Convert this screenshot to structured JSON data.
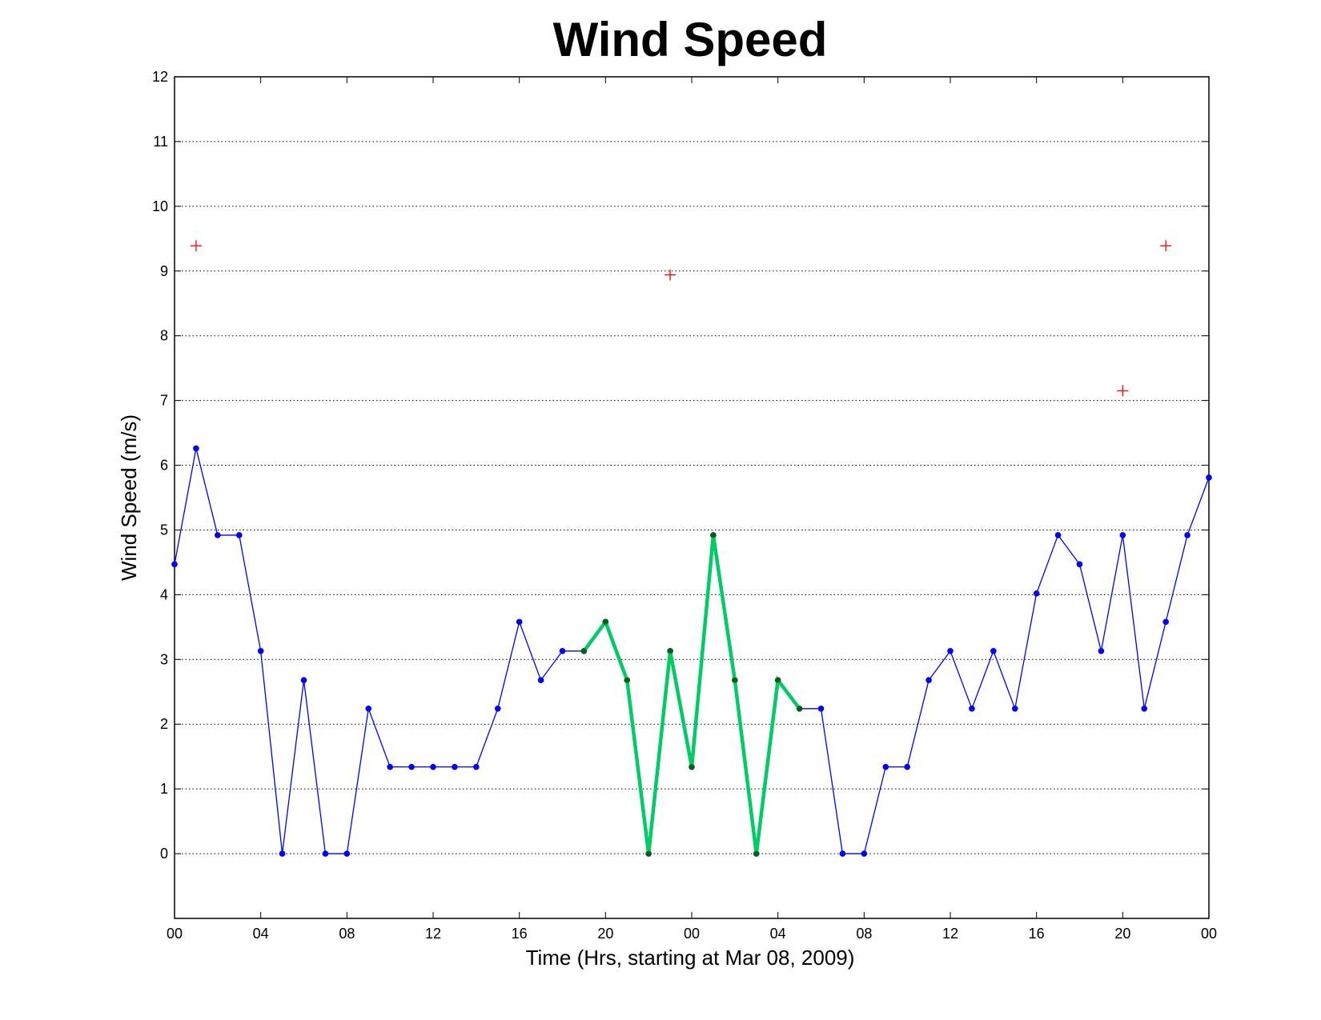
{
  "chart_data": {
    "type": "line",
    "title": "Wind Speed",
    "xlabel": "Time (Hrs, starting at Mar 08, 2009)",
    "ylabel": "Wind Speed (m/s)",
    "xlim": [
      0,
      48
    ],
    "ylim": [
      -1,
      12
    ],
    "yticks": [
      0,
      1,
      2,
      3,
      4,
      5,
      6,
      7,
      8,
      9,
      10,
      11,
      12
    ],
    "xticks": [
      0,
      4,
      8,
      12,
      16,
      20,
      24,
      28,
      32,
      36,
      40,
      44,
      48
    ],
    "xtick_labels": [
      "00",
      "04",
      "08",
      "12",
      "16",
      "20",
      "00",
      "04",
      "08",
      "12",
      "16",
      "20",
      "00"
    ],
    "grid": "horizontal dotted",
    "x": [
      0,
      1,
      2,
      3,
      4,
      5,
      6,
      7,
      8,
      9,
      10,
      11,
      12,
      13,
      14,
      15,
      16,
      17,
      18,
      19,
      20,
      21,
      22,
      23,
      24,
      25,
      26,
      27,
      28,
      29,
      30,
      31,
      32,
      33,
      34,
      35,
      36,
      37,
      38,
      39,
      40,
      41,
      42,
      43,
      44,
      45,
      46,
      47,
      48
    ],
    "series": [
      {
        "style": "line-dot",
        "color": "#0000ff",
        "values": [
          4.47,
          6.26,
          4.92,
          4.92,
          3.13,
          0,
          2.68,
          0,
          0,
          2.24,
          1.34,
          1.34,
          1.34,
          1.34,
          1.34,
          2.24,
          3.58,
          2.68,
          3.13,
          3.13,
          3.58,
          2.68,
          0,
          3.13,
          1.34,
          4.92,
          2.68,
          0,
          2.68,
          2.24,
          2.24,
          0,
          0,
          1.34,
          1.34,
          2.68,
          3.13,
          2.24,
          3.13,
          2.24,
          4.02,
          4.92,
          4.47,
          3.13,
          4.92,
          2.24,
          3.58,
          4.92,
          5.81
        ]
      },
      {
        "style": "thick-line",
        "color": "#00cc66",
        "point_color": "#006600",
        "x": [
          19,
          20,
          21,
          22,
          23,
          24,
          25,
          26,
          27,
          28,
          29
        ],
        "values": [
          3.13,
          3.58,
          2.68,
          0,
          3.13,
          1.34,
          4.92,
          2.68,
          0,
          2.68,
          2.24
        ]
      },
      {
        "style": "plus-marker",
        "color": "#ff0000",
        "x": [
          1,
          23,
          44,
          46
        ],
        "values": [
          9.39,
          8.94,
          7.15,
          9.39
        ]
      }
    ]
  }
}
